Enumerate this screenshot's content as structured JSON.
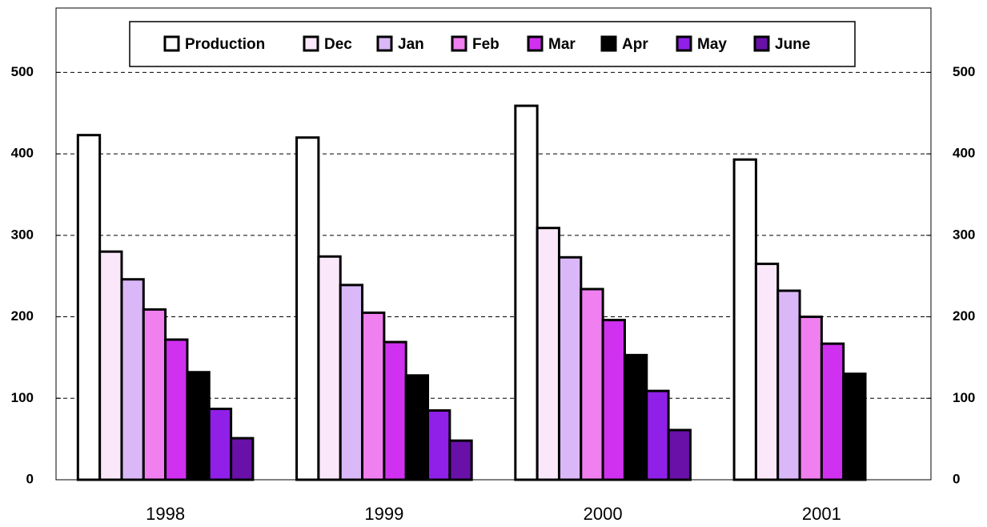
{
  "chart_data": {
    "type": "bar",
    "categories": [
      "1998",
      "1999",
      "2000",
      "2001"
    ],
    "series": [
      {
        "name": "Production",
        "color": "#ffffff",
        "values": [
          423,
          420,
          459,
          393
        ]
      },
      {
        "name": "Dec",
        "color": "#fae8fa",
        "values": [
          280,
          274,
          309,
          265
        ]
      },
      {
        "name": "Jan",
        "color": "#dab8f8",
        "values": [
          246,
          239,
          273,
          232
        ]
      },
      {
        "name": "Feb",
        "color": "#f080f0",
        "values": [
          209,
          205,
          234,
          200
        ]
      },
      {
        "name": "Mar",
        "color": "#d030f0",
        "values": [
          172,
          169,
          196,
          167
        ]
      },
      {
        "name": "Apr",
        "color": "#000000",
        "values": [
          132,
          128,
          153,
          130
        ]
      },
      {
        "name": "May",
        "color": "#9020e8",
        "values": [
          87,
          85,
          109,
          null
        ]
      },
      {
        "name": "June",
        "color": "#6810a8",
        "values": [
          51,
          48,
          61,
          null
        ]
      }
    ],
    "ylim": [
      0,
      579
    ],
    "yticks": [
      0,
      100,
      200,
      300,
      400,
      500
    ],
    "grid": true,
    "legend": "top"
  }
}
